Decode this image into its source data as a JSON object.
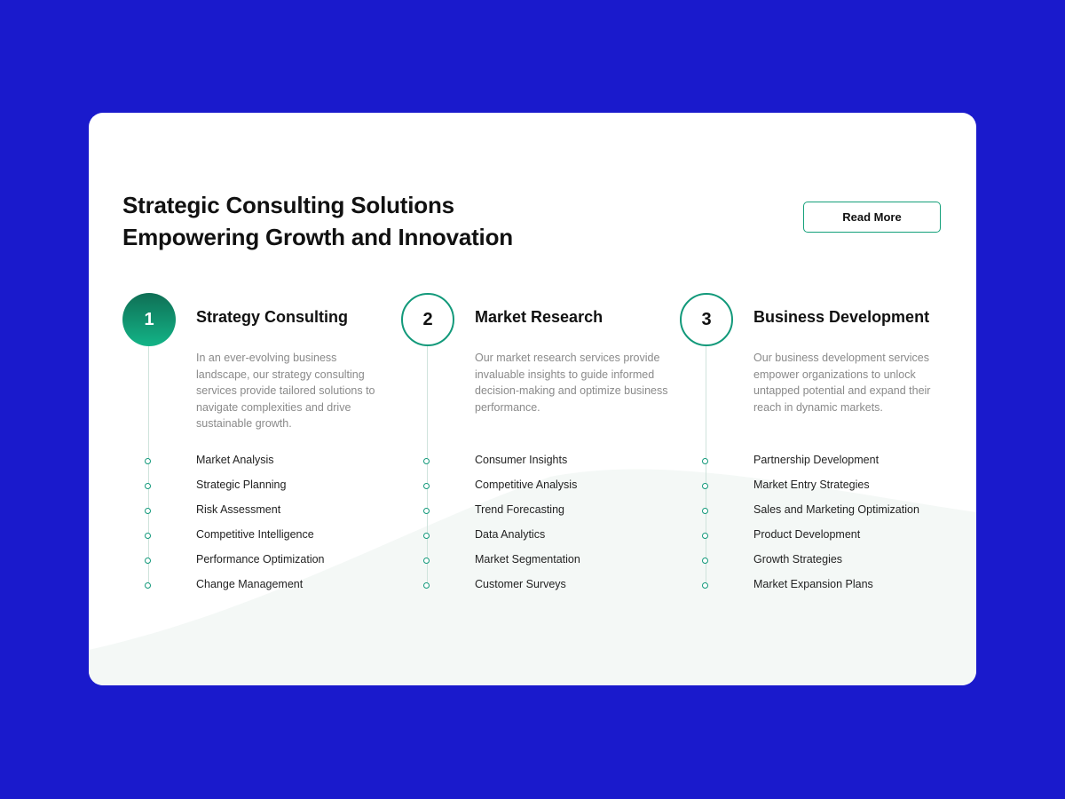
{
  "headline": {
    "line1": "Strategic Consulting Solutions",
    "line2": "Empowering Growth and Innovation"
  },
  "read_more_label": "Read More",
  "colors": {
    "background": "#1a1acc",
    "accent": "#12997a",
    "accent_gradient_top": "#0f6f55",
    "accent_gradient_bottom": "#13b487"
  },
  "columns": [
    {
      "number": "1",
      "active": true,
      "title": "Strategy Consulting",
      "description": "In an ever-evolving business landscape, our strategy consulting services provide tailored solutions to navigate complexities and drive sustainable growth.",
      "items": [
        "Market Analysis",
        "Strategic Planning",
        "Risk Assessment",
        "Competitive Intelligence",
        "Performance Optimization",
        "Change Management"
      ]
    },
    {
      "number": "2",
      "active": false,
      "title": "Market Research",
      "description": "Our market research services provide invaluable insights to guide informed decision-making and optimize business performance.",
      "items": [
        "Consumer Insights",
        "Competitive Analysis",
        "Trend Forecasting",
        "Data Analytics",
        "Market Segmentation",
        "Customer Surveys"
      ]
    },
    {
      "number": "3",
      "active": false,
      "title": "Business Development",
      "description": "Our business development services empower organizations to unlock untapped potential and expand their reach in dynamic markets.",
      "items": [
        "Partnership Development",
        "Market Entry Strategies",
        "Sales and Marketing Optimization",
        "Product Development",
        "Growth Strategies",
        "Market Expansion Plans"
      ]
    }
  ]
}
